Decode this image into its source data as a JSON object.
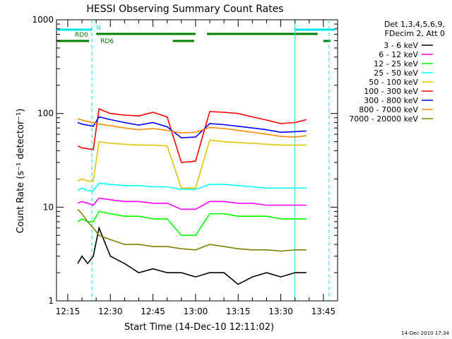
{
  "chart_data": {
    "type": "line",
    "title": "HESSI Observing Summary Count Rates",
    "xlabel": "Start Time (14-Dec-10 12:11:02)",
    "ylabel": "Count Rate (s⁻¹ detector⁻¹)",
    "yscale": "log",
    "ylim": [
      1,
      1000
    ],
    "xlim": [
      "12:11:02",
      "13:50:00"
    ],
    "yticks": [
      "1",
      "10",
      "100",
      "1000"
    ],
    "xticks": [
      "12:15",
      "12:30",
      "12:45",
      "13:00",
      "13:15",
      "13:30",
      "13:45"
    ],
    "legend_position": "top-right",
    "legend_header": [
      "Det 1,3,4,5,6,9,",
      "FDecim 2, Att 0"
    ],
    "timestamp": "14-Dec-2010 17:34",
    "flags": [
      {
        "label": "N",
        "color": "#00e5ee",
        "segments": [
          [
            "12:11:02",
            "12:23:30"
          ],
          [
            "13:35:00",
            "13:49:00"
          ]
        ]
      },
      {
        "label": "RD0",
        "color": "#008000",
        "segments": [
          [
            "12:25:00",
            "13:00:00"
          ],
          [
            "13:04:00",
            "13:43:00"
          ]
        ]
      },
      {
        "label": "RD6",
        "color": "#008000",
        "segments": [
          [
            "12:11:02",
            "12:22:30"
          ],
          [
            "12:52:00",
            "12:59:30"
          ],
          [
            "13:45:00",
            "13:47:30"
          ]
        ]
      }
    ],
    "vlines": [
      {
        "time": "12:23:30",
        "style": "dashed",
        "color": "#00e5ee"
      },
      {
        "time": "13:35:00",
        "style": "solid",
        "color": "#00e5ee"
      },
      {
        "time": "13:47:00",
        "style": "dashed",
        "color": "#00e5ee"
      }
    ],
    "series": [
      {
        "name": "3 - 6 keV",
        "color": "#000000",
        "x": [
          "12:18:30",
          "12:20",
          "12:22",
          "12:24",
          "12:26",
          "12:30",
          "12:35",
          "12:40",
          "12:45",
          "12:50",
          "12:55",
          "13:00",
          "13:05",
          "13:10",
          "13:15",
          "13:20",
          "13:25",
          "13:30",
          "13:35",
          "13:39"
        ],
        "y": [
          2.5,
          3,
          2.5,
          3,
          6,
          3,
          2.5,
          2,
          2.2,
          2,
          2,
          1.8,
          2,
          2,
          1.5,
          1.8,
          2,
          1.8,
          2,
          2
        ]
      },
      {
        "name": "6 - 12 keV",
        "color": "#ff00ff",
        "x": [
          "12:18:30",
          "12:20",
          "12:22",
          "12:24",
          "12:26",
          "12:30",
          "12:35",
          "12:40",
          "12:45",
          "12:50",
          "12:55",
          "13:00",
          "13:05",
          "13:10",
          "13:15",
          "13:20",
          "13:25",
          "13:30",
          "13:35",
          "13:39"
        ],
        "y": [
          11,
          11.5,
          11,
          10.5,
          12.5,
          12,
          11.5,
          11.5,
          11,
          11,
          9.5,
          9.5,
          11.5,
          11.5,
          11,
          11,
          10.5,
          10.5,
          10.5,
          10.5
        ]
      },
      {
        "name": "12 - 25 keV",
        "color": "#00ff00",
        "x": [
          "12:18:30",
          "12:20",
          "12:22",
          "12:24",
          "12:26",
          "12:30",
          "12:35",
          "12:40",
          "12:45",
          "12:50",
          "12:55",
          "13:00",
          "13:05",
          "13:10",
          "13:15",
          "13:20",
          "13:25",
          "13:30",
          "13:35",
          "13:39"
        ],
        "y": [
          7,
          7.5,
          7,
          7,
          9,
          8.5,
          8,
          8,
          7.5,
          7.5,
          5,
          5,
          8.5,
          8.5,
          8,
          8,
          8,
          7.5,
          7.5,
          7.5
        ]
      },
      {
        "name": "25 - 50 keV",
        "color": "#00ffff",
        "x": [
          "12:18:30",
          "12:20",
          "12:22",
          "12:24",
          "12:26",
          "12:30",
          "12:35",
          "12:40",
          "12:45",
          "12:50",
          "12:55",
          "13:00",
          "13:05",
          "13:10",
          "13:15",
          "13:20",
          "13:25",
          "13:30",
          "13:35",
          "13:39"
        ],
        "y": [
          15,
          16,
          15,
          15,
          18,
          17.5,
          17,
          17,
          16.5,
          16.5,
          15.5,
          15.5,
          17.5,
          17.5,
          17,
          16.5,
          16,
          16,
          16,
          16
        ]
      },
      {
        "name": "50 - 100 keV",
        "color": "#e6c300",
        "x": [
          "12:18:30",
          "12:20",
          "12:22",
          "12:24",
          "12:26",
          "12:30",
          "12:35",
          "12:40",
          "12:45",
          "12:50",
          "12:55",
          "13:00",
          "13:05",
          "13:10",
          "13:15",
          "13:20",
          "13:25",
          "13:30",
          "13:35",
          "13:39"
        ],
        "y": [
          19,
          20,
          19,
          19,
          50,
          48,
          47,
          46,
          46,
          45,
          16,
          16,
          52,
          50,
          49,
          48,
          47,
          46,
          46,
          46
        ]
      },
      {
        "name": "100 - 300 keV",
        "color": "#ff0000",
        "x": [
          "12:18:30",
          "12:20",
          "12:22",
          "12:24",
          "12:26",
          "12:30",
          "12:35",
          "12:40",
          "12:45",
          "12:50",
          "12:55",
          "13:00",
          "13:05",
          "13:10",
          "13:15",
          "13:20",
          "13:25",
          "13:30",
          "13:35",
          "13:39"
        ],
        "y": [
          45,
          43,
          42,
          41,
          112,
          100,
          96,
          94,
          103,
          92,
          30,
          31,
          105,
          103,
          100,
          92,
          85,
          78,
          80,
          86
        ]
      },
      {
        "name": "300 - 800 keV",
        "color": "#0000ff",
        "x": [
          "12:18:30",
          "12:20",
          "12:22",
          "12:24",
          "12:26",
          "12:30",
          "12:35",
          "12:40",
          "12:45",
          "12:50",
          "12:55",
          "13:00",
          "13:05",
          "13:10",
          "13:15",
          "13:20",
          "13:25",
          "13:30",
          "13:35",
          "13:39"
        ],
        "y": [
          80,
          77,
          75,
          73,
          92,
          86,
          80,
          75,
          80,
          72,
          55,
          56,
          78,
          76,
          73,
          70,
          67,
          63,
          64,
          65
        ]
      },
      {
        "name": "800 - 7000 keV",
        "color": "#ff8c00",
        "x": [
          "12:18:30",
          "12:20",
          "12:22",
          "12:24",
          "12:26",
          "12:30",
          "12:35",
          "12:40",
          "12:45",
          "12:50",
          "12:55",
          "13:00",
          "13:05",
          "13:10",
          "13:15",
          "13:20",
          "13:25",
          "13:30",
          "13:35",
          "13:39"
        ],
        "y": [
          88,
          85,
          82,
          80,
          77,
          74,
          70,
          67,
          69,
          66,
          62,
          63,
          71,
          69,
          66,
          63,
          60,
          57,
          56,
          58
        ]
      },
      {
        "name": "7000 - 20000 keV",
        "color": "#808000",
        "x": [
          "12:18:30",
          "12:20",
          "12:22",
          "12:24",
          "12:26",
          "12:30",
          "12:35",
          "12:40",
          "12:45",
          "12:50",
          "12:55",
          "13:00",
          "13:05",
          "13:10",
          "13:15",
          "13:20",
          "13:25",
          "13:30",
          "13:35",
          "13:39"
        ],
        "y": [
          9.5,
          8.5,
          7,
          6,
          5,
          4.5,
          4,
          4,
          3.8,
          3.8,
          3.6,
          3.5,
          4,
          3.8,
          3.6,
          3.5,
          3.5,
          3.4,
          3.5,
          3.5
        ]
      }
    ]
  }
}
